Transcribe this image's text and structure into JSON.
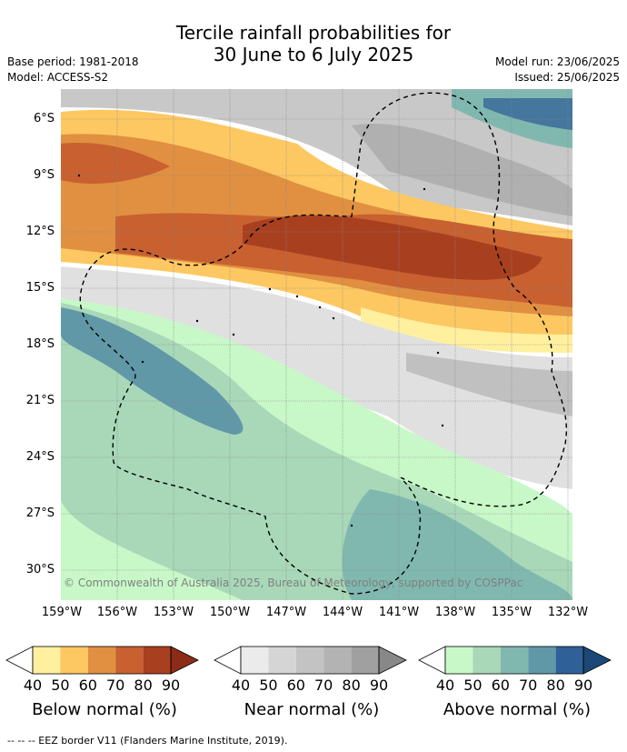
{
  "title": {
    "line1": "Tercile rainfall probabilities for",
    "line2": "30 June to 6 July 2025"
  },
  "meta": {
    "base_period": "Base period: 1981-2018",
    "model": "Model: ACCESS-S2",
    "model_run": "Model run: 23/06/2025",
    "issued": "Issued: 25/06/2025"
  },
  "map": {
    "lat_labels": [
      "6°S",
      "9°S",
      "12°S",
      "15°S",
      "18°S",
      "21°S",
      "24°S",
      "27°S",
      "30°S"
    ],
    "lon_labels": [
      "159°W",
      "156°W",
      "153°W",
      "150°W",
      "147°W",
      "144°W",
      "141°W",
      "138°W",
      "135°W",
      "132°W"
    ],
    "copyright": "© Commonwealth of Australia 2025, Bureau of Meteorology, supported by COSPPac"
  },
  "legend": {
    "ticks": [
      "40",
      "50",
      "60",
      "70",
      "80",
      "90"
    ],
    "below": {
      "title": "Below normal (%)",
      "colors": [
        "#fff0a0",
        "#fdc862",
        "#e09040",
        "#c86030",
        "#a84020",
        "#8c2c18"
      ]
    },
    "near": {
      "title": "Near normal (%)",
      "colors": [
        "#ebebeb",
        "#d5d5d5",
        "#c3c3c3",
        "#b3b3b3",
        "#a0a0a0",
        "#888888"
      ]
    },
    "above": {
      "title": "Above normal (%)",
      "colors": [
        "#c8f8c8",
        "#a8d8b8",
        "#80b8b0",
        "#6098a8",
        "#306098",
        "#1c4878"
      ]
    }
  },
  "footer": "-- -- -- EEZ border V11 (Flanders Marine Institute, 2019)."
}
